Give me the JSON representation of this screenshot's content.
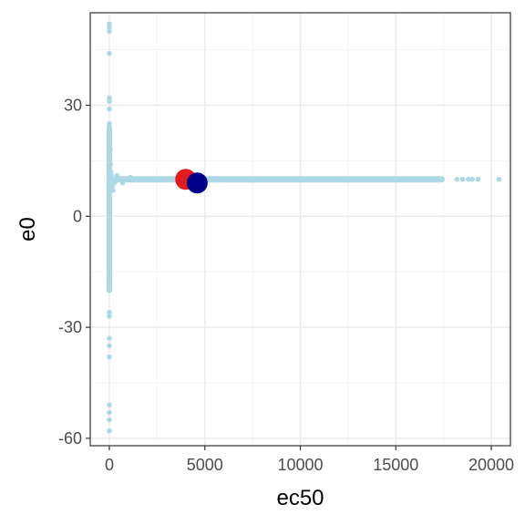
{
  "chart_data": {
    "type": "scatter",
    "xlabel": "ec50",
    "ylabel": "e0",
    "xlim": [
      -1000,
      21000
    ],
    "ylim": [
      -62,
      55
    ],
    "grid": true,
    "x_ticks": [
      0,
      5000,
      10000,
      15000,
      20000
    ],
    "x_tick_labels": [
      "0",
      "5000",
      "10000",
      "15000",
      "20000"
    ],
    "y_ticks": [
      -60,
      -30,
      0,
      30
    ],
    "y_tick_labels": [
      "-60",
      "-30",
      "0",
      "30"
    ],
    "colors": {
      "points": "#add8e6",
      "highlight_red": "#e41a1c",
      "highlight_blue": "#00008b",
      "grid_major": "#ebebeb",
      "grid_minor": "#f5f5f5",
      "panel_border": "#333333"
    },
    "series": [
      {
        "role": "samples",
        "style": "small-points",
        "points": [
          [
            0,
            52
          ],
          [
            0,
            51
          ],
          [
            0,
            50
          ],
          [
            0,
            44
          ],
          [
            0,
            32
          ],
          [
            0,
            31
          ],
          [
            0,
            29
          ],
          [
            0,
            25
          ],
          [
            0,
            22
          ],
          [
            0,
            19
          ],
          [
            0,
            17
          ],
          [
            0,
            15
          ],
          [
            0,
            13
          ],
          [
            0,
            12
          ],
          [
            0,
            11
          ],
          [
            0,
            10
          ],
          [
            0,
            9
          ],
          [
            0,
            8
          ],
          [
            0,
            7
          ],
          [
            0,
            6
          ],
          [
            0,
            5
          ],
          [
            0,
            4
          ],
          [
            0,
            3
          ],
          [
            0,
            2
          ],
          [
            0,
            1
          ],
          [
            0,
            -1
          ],
          [
            0,
            -2
          ],
          [
            0,
            -4
          ],
          [
            0,
            -6
          ],
          [
            0,
            -8
          ],
          [
            0,
            -10
          ],
          [
            0,
            -12
          ],
          [
            0,
            -13
          ],
          [
            0,
            -14
          ],
          [
            0,
            -16
          ],
          [
            0,
            -18
          ],
          [
            0,
            -20
          ],
          [
            0,
            -26
          ],
          [
            0,
            -27
          ],
          [
            0,
            -33
          ],
          [
            0,
            -35
          ],
          [
            0,
            -38
          ],
          [
            0,
            -51
          ],
          [
            0,
            -53
          ],
          [
            0,
            -55
          ],
          [
            0,
            -58
          ],
          [
            50,
            18
          ],
          [
            60,
            14
          ],
          [
            80,
            12
          ],
          [
            100,
            11
          ],
          [
            120,
            10
          ],
          [
            150,
            8
          ],
          [
            200,
            7
          ],
          [
            250,
            9
          ],
          [
            300,
            9.5
          ],
          [
            400,
            11
          ],
          [
            500,
            10
          ],
          [
            700,
            9
          ],
          [
            900,
            10
          ],
          [
            1100,
            10.5
          ],
          [
            1300,
            10
          ],
          [
            1500,
            10
          ],
          [
            1800,
            10
          ],
          [
            2100,
            10
          ],
          [
            2400,
            10
          ],
          [
            2700,
            10
          ],
          [
            3000,
            10
          ],
          [
            3300,
            10
          ],
          [
            3600,
            10
          ],
          [
            4000,
            10
          ],
          [
            4500,
            10
          ],
          [
            5000,
            10
          ],
          [
            5500,
            10
          ],
          [
            6000,
            10
          ],
          [
            6500,
            10
          ],
          [
            7000,
            10
          ],
          [
            7500,
            10
          ],
          [
            8000,
            10
          ],
          [
            8500,
            10
          ],
          [
            9000,
            10
          ],
          [
            9500,
            10
          ],
          [
            10000,
            10
          ],
          [
            10500,
            10
          ],
          [
            11000,
            10
          ],
          [
            11500,
            10
          ],
          [
            12000,
            10
          ],
          [
            12500,
            10
          ],
          [
            13000,
            10
          ],
          [
            13500,
            10
          ],
          [
            14000,
            10
          ],
          [
            14500,
            10
          ],
          [
            15000,
            10
          ],
          [
            15500,
            10
          ],
          [
            16000,
            10
          ],
          [
            16500,
            10
          ],
          [
            17000,
            10
          ],
          [
            17400,
            10
          ],
          [
            18200,
            10
          ],
          [
            18500,
            10
          ],
          [
            18800,
            10
          ],
          [
            19000,
            10
          ],
          [
            19300,
            10
          ],
          [
            20400,
            10
          ]
        ]
      },
      {
        "role": "highlight",
        "style": "large-point",
        "color": "#e41a1c",
        "points": [
          [
            4000,
            10
          ]
        ]
      },
      {
        "role": "highlight",
        "style": "large-point",
        "color": "#00008b",
        "points": [
          [
            4600,
            9
          ]
        ]
      }
    ]
  }
}
